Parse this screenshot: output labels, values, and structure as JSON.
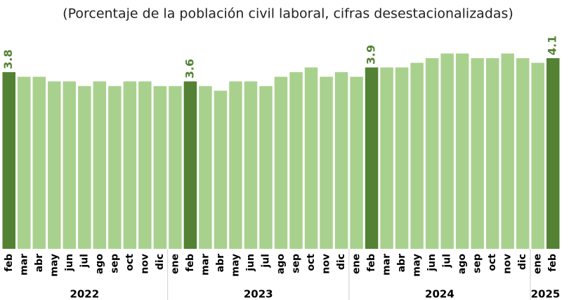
{
  "chart_data": {
    "type": "bar",
    "title": "(Porcentaje de la población civil laboral, cifras desestacionalizadas)",
    "groups": [
      {
        "name": "2022",
        "categories": [
          "feb",
          "mar",
          "abr",
          "may",
          "jun",
          "jul",
          "ago",
          "sep",
          "oct",
          "nov",
          "dic"
        ]
      },
      {
        "name": "2023",
        "categories": [
          "ene",
          "feb",
          "mar",
          "abr",
          "may",
          "jun",
          "jul",
          "ago",
          "sep",
          "oct",
          "nov",
          "dic"
        ]
      },
      {
        "name": "2024",
        "categories": [
          "ene",
          "feb",
          "mar",
          "abr",
          "may",
          "jun",
          "jul",
          "ago",
          "sep",
          "oct",
          "nov",
          "dic"
        ]
      },
      {
        "name": "2025",
        "categories": [
          "ene",
          "feb"
        ]
      }
    ],
    "values": [
      3.8,
      3.7,
      3.7,
      3.6,
      3.6,
      3.5,
      3.6,
      3.5,
      3.6,
      3.6,
      3.5,
      3.5,
      3.6,
      3.5,
      3.4,
      3.6,
      3.6,
      3.5,
      3.7,
      3.8,
      3.9,
      3.7,
      3.8,
      3.7,
      3.9,
      3.9,
      3.9,
      4.0,
      4.1,
      4.2,
      4.2,
      4.1,
      4.1,
      4.2,
      4.1,
      4.0,
      4.1
    ],
    "value_labels": [
      "3.8",
      null,
      null,
      null,
      null,
      null,
      null,
      null,
      null,
      null,
      null,
      null,
      "3.6",
      null,
      null,
      null,
      null,
      null,
      null,
      null,
      null,
      null,
      null,
      null,
      "3.9",
      null,
      null,
      null,
      null,
      null,
      null,
      null,
      null,
      null,
      null,
      null,
      "4.1"
    ],
    "colors": [
      "#548235",
      "#a9d18e",
      "#a9d18e",
      "#a9d18e",
      "#a9d18e",
      "#a9d18e",
      "#a9d18e",
      "#a9d18e",
      "#a9d18e",
      "#a9d18e",
      "#a9d18e",
      "#a9d18e",
      "#548235",
      "#a9d18e",
      "#a9d18e",
      "#a9d18e",
      "#a9d18e",
      "#a9d18e",
      "#a9d18e",
      "#a9d18e",
      "#a9d18e",
      "#a9d18e",
      "#a9d18e",
      "#a9d18e",
      "#548235",
      "#a9d18e",
      "#a9d18e",
      "#a9d18e",
      "#a9d18e",
      "#a9d18e",
      "#a9d18e",
      "#a9d18e",
      "#a9d18e",
      "#a9d18e",
      "#a9d18e",
      "#a9d18e",
      "#548235"
    ],
    "ylim": [
      0,
      5.2
    ]
  }
}
